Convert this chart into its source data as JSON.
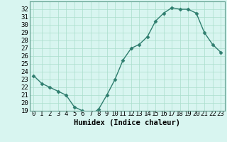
{
  "x": [
    0,
    1,
    2,
    3,
    4,
    5,
    6,
    7,
    8,
    9,
    10,
    11,
    12,
    13,
    14,
    15,
    16,
    17,
    18,
    19,
    20,
    21,
    22,
    23
  ],
  "y": [
    23.5,
    22.5,
    22.0,
    21.5,
    21.0,
    19.5,
    19.0,
    18.5,
    19.2,
    21.0,
    23.0,
    25.5,
    27.0,
    27.5,
    28.5,
    30.5,
    31.5,
    32.2,
    32.0,
    32.0,
    31.5,
    29.0,
    27.5,
    26.5
  ],
  "line_color": "#2e7d6e",
  "marker": "D",
  "markersize": 2.5,
  "linewidth": 1.0,
  "bg_color": "#d8f5f0",
  "grid_color": "#aaddcc",
  "xlabel": "Humidex (Indice chaleur)",
  "xlim": [
    -0.5,
    23.5
  ],
  "ylim": [
    19,
    33
  ],
  "yticks": [
    19,
    20,
    21,
    22,
    23,
    24,
    25,
    26,
    27,
    28,
    29,
    30,
    31,
    32
  ],
  "xticks": [
    0,
    1,
    2,
    3,
    4,
    5,
    6,
    7,
    8,
    9,
    10,
    11,
    12,
    13,
    14,
    15,
    16,
    17,
    18,
    19,
    20,
    21,
    22,
    23
  ],
  "xlabel_fontsize": 7.5,
  "tick_fontsize": 6.5,
  "spine_color": "#5a9a8a"
}
